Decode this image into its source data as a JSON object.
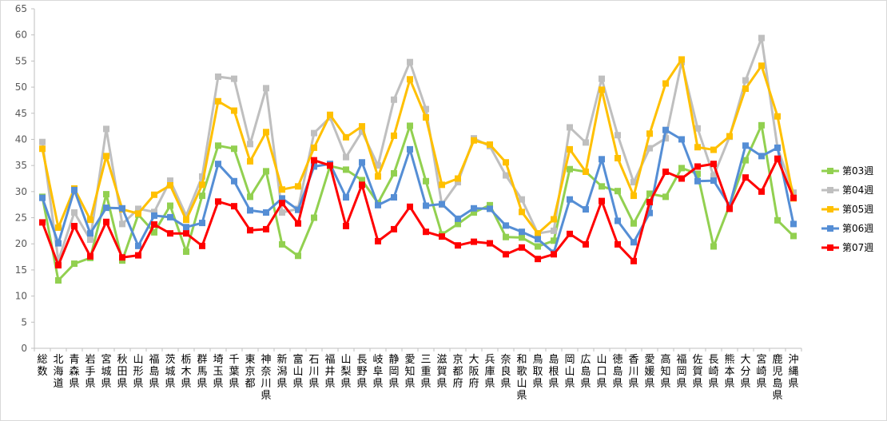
{
  "chart_data": {
    "type": "line",
    "ylim": [
      0,
      65
    ],
    "yticks": [
      0,
      5,
      10,
      15,
      20,
      25,
      30,
      35,
      40,
      45,
      50,
      55,
      60,
      65
    ],
    "grid": false,
    "legend_position": "right",
    "categories": [
      "総数",
      "北海道",
      "青森県",
      "岩手県",
      "宮城県",
      "秋田県",
      "山形県",
      "福島県",
      "茨城県",
      "栃木県",
      "群馬県",
      "埼玉県",
      "千葉県",
      "東京都",
      "神奈川県",
      "新潟県",
      "富山県",
      "石川県",
      "福井県",
      "山梨県",
      "長野県",
      "岐阜県",
      "静岡県",
      "愛知県",
      "三重県",
      "滋賀県",
      "京都府",
      "大阪府",
      "兵庫県",
      "奈良県",
      "和歌山県",
      "鳥取県",
      "島根県",
      "岡山県",
      "広島県",
      "山口県",
      "徳島県",
      "香川県",
      "愛媛県",
      "高知県",
      "福岡県",
      "佐賀県",
      "長崎県",
      "熊本県",
      "大分県",
      "宮崎県",
      "鹿児島県",
      "沖縄県"
    ],
    "series": [
      {
        "name": "第03週",
        "color": "#92d050",
        "values": [
          29,
          13,
          16.2,
          17.3,
          29.5,
          16.8,
          25.6,
          22.2,
          27.3,
          18.5,
          29.2,
          38.8,
          38.2,
          29,
          33.9,
          19.9,
          17.7,
          25,
          34.9,
          34.2,
          32.2,
          27.8,
          33.5,
          42.6,
          32,
          21.8,
          23.8,
          26,
          27.4,
          21.3,
          21.2,
          19.5,
          20.6,
          34.3,
          33.8,
          31,
          30.1,
          23.9,
          29.6,
          29,
          34.5,
          33.4,
          19.5,
          27.4,
          36,
          42.7,
          24.5,
          21.5
        ]
      },
      {
        "name": "第04週",
        "color": "#bfbfbf",
        "values": [
          39.5,
          16.8,
          26,
          20.8,
          42,
          23.8,
          26.7,
          26.1,
          32.1,
          25.4,
          32.9,
          52,
          51.6,
          39.1,
          49.8,
          26,
          26.7,
          41.2,
          44.2,
          36.6,
          41.5,
          35,
          47.6,
          54.8,
          45.8,
          27.5,
          31.8,
          40.2,
          38.7,
          33.1,
          28.5,
          22,
          22.5,
          42.3,
          39.4,
          51.6,
          40.8,
          31.8,
          38.3,
          40.2,
          54.8,
          42.1,
          33,
          40.5,
          51.3,
          59.4,
          38.4,
          29.8
        ]
      },
      {
        "name": "第05週",
        "color": "#ffc000",
        "values": [
          38.2,
          23.1,
          30.6,
          24.6,
          36.8,
          26.6,
          25.8,
          29.4,
          31.2,
          24.6,
          31.3,
          47.3,
          45.5,
          35.8,
          41.4,
          30.4,
          31,
          38.4,
          44.7,
          40.4,
          42.5,
          32.9,
          40.7,
          51.5,
          44.2,
          31.3,
          32.5,
          39.8,
          39,
          35.6,
          26.1,
          22,
          24.7,
          38.1,
          33.8,
          49.5,
          36.4,
          29.2,
          41.1,
          50.7,
          55.3,
          38.5,
          38,
          40.6,
          49.7,
          54.1,
          44.4,
          28.7
        ]
      },
      {
        "name": "第06週",
        "color": "#558ed5",
        "values": [
          28.8,
          20.1,
          30.3,
          22,
          26.9,
          26.8,
          19.6,
          25.4,
          25.1,
          23.2,
          24,
          35.3,
          32,
          26.4,
          26,
          28.7,
          26.5,
          34.8,
          35.3,
          28.9,
          35.6,
          27.4,
          28.9,
          38.1,
          27.3,
          27.6,
          24.8,
          26.8,
          26.7,
          23.5,
          22.3,
          20.9,
          18.3,
          28.5,
          26.6,
          36.2,
          24.4,
          20.3,
          25.9,
          41.8,
          40,
          32,
          32.1,
          27.3,
          38.8,
          36.8,
          38.4,
          23.8
        ]
      },
      {
        "name": "第07週",
        "color": "#ff0000",
        "values": [
          24.1,
          15.9,
          23.4,
          17.6,
          24.2,
          17.4,
          17.8,
          23.7,
          22,
          22,
          19.6,
          28.1,
          27.2,
          22.6,
          22.8,
          27.8,
          23.9,
          36,
          35,
          23.4,
          31.3,
          20.5,
          22.8,
          27.1,
          22.3,
          21.4,
          19.7,
          20.4,
          20.1,
          18,
          19.3,
          17.1,
          18,
          21.9,
          19.9,
          28.2,
          19.9,
          16.7,
          28,
          33.8,
          32.5,
          34.8,
          35.3,
          26.7,
          32.7,
          30,
          36.3,
          28.8
        ]
      }
    ]
  }
}
